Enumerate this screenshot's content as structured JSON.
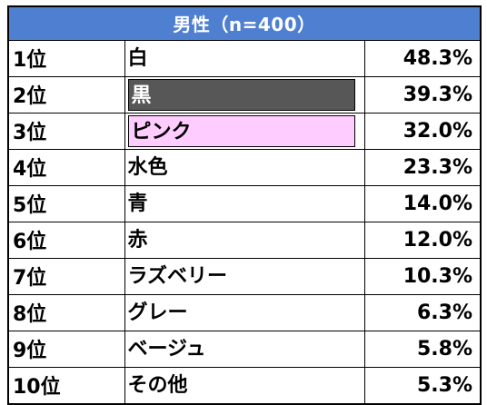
{
  "table": {
    "header": "男性（n=400）",
    "rows": [
      {
        "rank": "1位",
        "color_name": "白",
        "percent": "48.3%",
        "swatch_bg": "",
        "swatch_fg": "#000000"
      },
      {
        "rank": "2位",
        "color_name": "黒",
        "percent": "39.3%",
        "swatch_bg": "#575757",
        "swatch_fg": "#ffffff"
      },
      {
        "rank": "3位",
        "color_name": "ピンク",
        "percent": "32.0%",
        "swatch_bg": "#ffccff",
        "swatch_fg": "#000000"
      },
      {
        "rank": "4位",
        "color_name": "水色",
        "percent": "23.3%",
        "swatch_bg": "",
        "swatch_fg": "#000000"
      },
      {
        "rank": "5位",
        "color_name": "青",
        "percent": "14.0%",
        "swatch_bg": "",
        "swatch_fg": "#000000"
      },
      {
        "rank": "6位",
        "color_name": "赤",
        "percent": "12.0%",
        "swatch_bg": "",
        "swatch_fg": "#000000"
      },
      {
        "rank": "7位",
        "color_name": "ラズベリー",
        "percent": "10.3%",
        "swatch_bg": "",
        "swatch_fg": "#000000"
      },
      {
        "rank": "8位",
        "color_name": "グレー",
        "percent": "6.3%",
        "swatch_bg": "",
        "swatch_fg": "#000000"
      },
      {
        "rank": "9位",
        "color_name": "ベージュ",
        "percent": "5.8%",
        "swatch_bg": "",
        "swatch_fg": "#000000"
      },
      {
        "rank": "10位",
        "color_name": "その他",
        "percent": "5.3%",
        "swatch_bg": "",
        "swatch_fg": "#000000"
      }
    ]
  },
  "colors": {
    "header_bg": "#4f7fd0",
    "header_fg": "#ffffff",
    "border": "#000000"
  }
}
